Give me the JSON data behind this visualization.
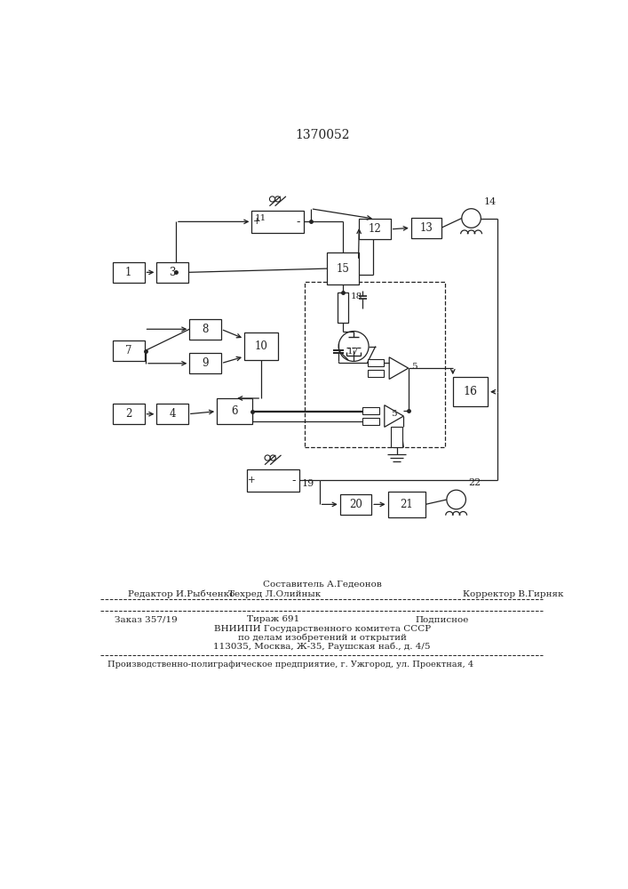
{
  "title": "1370052",
  "bg_color": "#ffffff",
  "lc": "#222222",
  "fc": "#222222",
  "footer_composer": "Составитель А.Гедеонов",
  "footer_editor": "Редактор И.Рыбченко",
  "footer_tech": "Техред Л.Олийнык",
  "footer_corr": "Корректор В.Гирняк",
  "footer_order": "Заказ 357/19",
  "footer_tirazh": "Тираж 691",
  "footer_podp": "Подписное",
  "footer_vniip1": "ВНИИПИ Государственного комитета СССР",
  "footer_vniip2": "по делам изобретений и открытий",
  "footer_addr": "113035, Москва, Ж-35, Раушская наб., д. 4/5",
  "footer_last": "Производственно-полиграфическое предприятие, г. Ужгород, ул. Проектная, 4"
}
